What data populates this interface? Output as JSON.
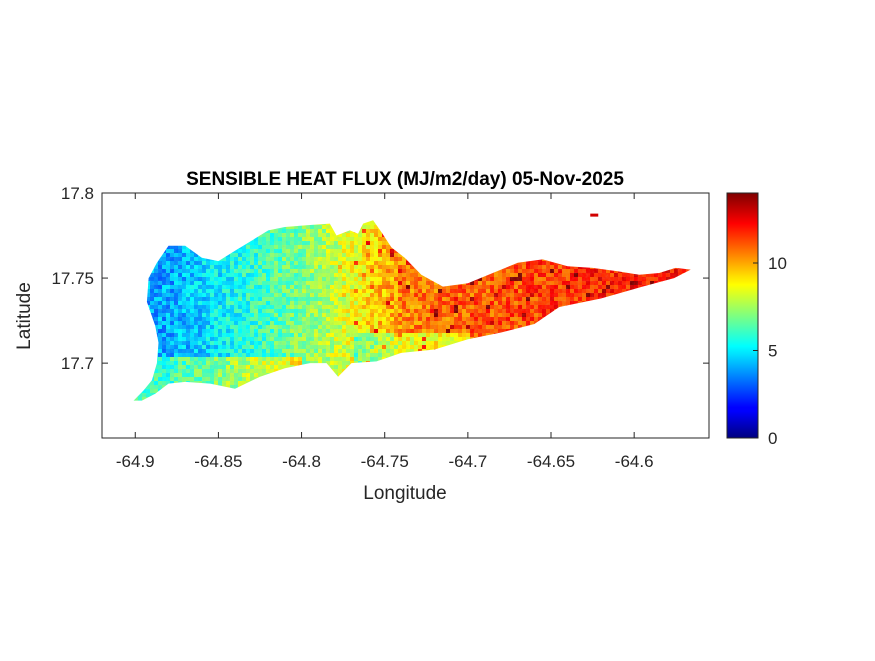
{
  "chart_data": {
    "type": "heatmap",
    "title": "SENSIBLE HEAT FLUX (MJ/m2/day) 05-Nov-2025",
    "xlabel": "Longitude",
    "ylabel": "Latitude",
    "xlim": [
      -64.92,
      -64.555
    ],
    "ylim": [
      17.656,
      17.8
    ],
    "x_ticks": [
      -64.9,
      -64.85,
      -64.8,
      -64.75,
      -64.7,
      -64.65,
      -64.6
    ],
    "x_tick_labels": [
      "-64.9",
      "-64.85",
      "-64.8",
      "-64.75",
      "-64.7",
      "-64.65",
      "-64.6"
    ],
    "y_ticks": [
      17.7,
      17.75,
      17.8
    ],
    "y_tick_labels": [
      "17.7",
      "17.75",
      "17.8"
    ],
    "colorbar": {
      "colormap": "jet",
      "clim": [
        0,
        14
      ],
      "ticks": [
        0,
        5,
        10
      ],
      "tick_labels": [
        "0",
        "5",
        "10"
      ]
    },
    "grid": false,
    "field": {
      "units": "MJ/m2/day",
      "value_range": [
        3,
        14
      ],
      "west_to_east_trend": [
        {
          "lon": -64.88,
          "value": 4.0
        },
        {
          "lon": -64.84,
          "value": 5.5
        },
        {
          "lon": -64.8,
          "value": 7.0
        },
        {
          "lon": -64.77,
          "value": 8.5
        },
        {
          "lon": -64.74,
          "value": 10.5
        },
        {
          "lon": -64.7,
          "value": 11.0
        },
        {
          "lon": -64.65,
          "value": 11.5
        },
        {
          "lon": -64.6,
          "value": 12.0
        }
      ]
    },
    "island_outline": [
      [
        -64.899,
        17.68
      ],
      [
        -64.895,
        17.684
      ],
      [
        -64.89,
        17.69
      ],
      [
        -64.887,
        17.7
      ],
      [
        -64.886,
        17.712
      ],
      [
        -64.888,
        17.722
      ],
      [
        -64.893,
        17.736
      ],
      [
        -64.892,
        17.75
      ],
      [
        -64.887,
        17.759
      ],
      [
        -64.88,
        17.769
      ],
      [
        -64.87,
        17.769
      ],
      [
        -64.86,
        17.762
      ],
      [
        -64.85,
        17.76
      ],
      [
        -64.84,
        17.766
      ],
      [
        -64.83,
        17.772
      ],
      [
        -64.82,
        17.778
      ],
      [
        -64.81,
        17.78
      ],
      [
        -64.797,
        17.781
      ],
      [
        -64.783,
        17.782
      ],
      [
        -64.779,
        17.775
      ],
      [
        -64.771,
        17.778
      ],
      [
        -64.766,
        17.776
      ],
      [
        -64.763,
        17.782
      ],
      [
        -64.757,
        17.784
      ],
      [
        -64.752,
        17.777
      ],
      [
        -64.746,
        17.768
      ],
      [
        -64.738,
        17.762
      ],
      [
        -64.728,
        17.752
      ],
      [
        -64.715,
        17.745
      ],
      [
        -64.7,
        17.747
      ],
      [
        -64.685,
        17.753
      ],
      [
        -64.67,
        17.759
      ],
      [
        -64.655,
        17.761
      ],
      [
        -64.64,
        17.757
      ],
      [
        -64.625,
        17.756
      ],
      [
        -64.61,
        17.754
      ],
      [
        -64.597,
        17.752
      ],
      [
        -64.585,
        17.753
      ],
      [
        -64.575,
        17.756
      ],
      [
        -64.566,
        17.755
      ],
      [
        -64.576,
        17.75
      ],
      [
        -64.595,
        17.745
      ],
      [
        -64.62,
        17.738
      ],
      [
        -64.645,
        17.733
      ],
      [
        -64.66,
        17.723
      ],
      [
        -64.68,
        17.718
      ],
      [
        -64.7,
        17.714
      ],
      [
        -64.72,
        17.708
      ],
      [
        -64.74,
        17.706
      ],
      [
        -64.755,
        17.701
      ],
      [
        -64.77,
        17.7
      ],
      [
        -64.778,
        17.692
      ],
      [
        -64.785,
        17.7
      ],
      [
        -64.795,
        17.7
      ],
      [
        -64.81,
        17.697
      ],
      [
        -64.825,
        17.692
      ],
      [
        -64.84,
        17.685
      ],
      [
        -64.855,
        17.688
      ],
      [
        -64.87,
        17.689
      ],
      [
        -64.88,
        17.688
      ],
      [
        -64.888,
        17.682
      ],
      [
        -64.896,
        17.678
      ],
      [
        -64.901,
        17.678
      ]
    ],
    "islet": {
      "lon": -64.624,
      "lat": 17.787
    }
  }
}
